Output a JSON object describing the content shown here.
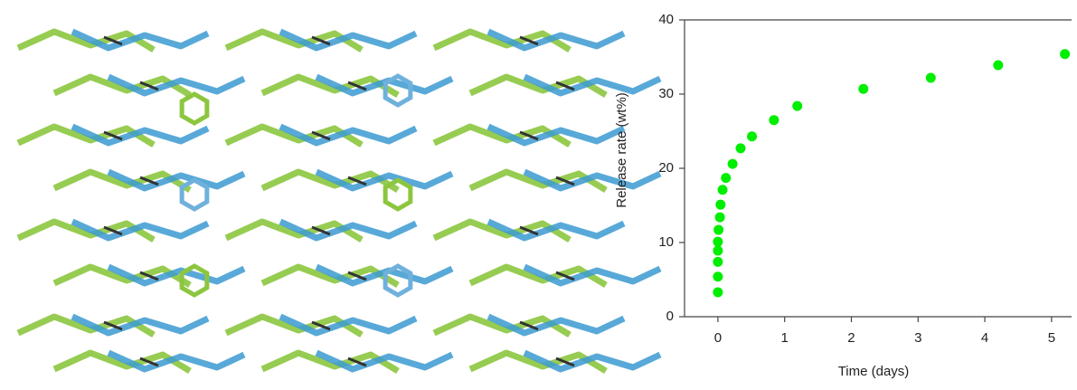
{
  "chart_data": {
    "type": "scatter",
    "xlabel": "Time (days)",
    "ylabel": "Release rate (wt%)",
    "xlim": [
      -0.5,
      5.3
    ],
    "xticks": [
      0,
      1,
      2,
      3,
      4,
      5
    ],
    "ylim": [
      0,
      40
    ],
    "yticks": [
      0,
      10,
      20,
      30,
      40
    ],
    "color": "#00ee00",
    "grid": false,
    "x": [
      0,
      0,
      0,
      0,
      0,
      0.01,
      0.03,
      0.04,
      0.07,
      0.12,
      0.22,
      0.34,
      0.51,
      0.84,
      1.19,
      2.18,
      3.19,
      4.2,
      5.2
    ],
    "values": [
      3.3,
      5.4,
      7.4,
      8.9,
      10.1,
      11.7,
      13.4,
      15.1,
      17.1,
      18.7,
      20.6,
      22.7,
      24.3,
      26.5,
      28.4,
      30.7,
      32.2,
      33.9,
      35.4
    ]
  }
}
